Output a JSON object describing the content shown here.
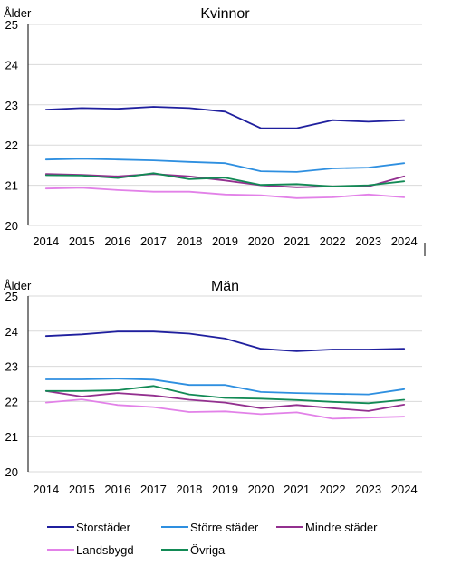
{
  "chart_data": [
    {
      "type": "line",
      "title": "Kvinnor",
      "ylabel": "Ålder",
      "xlabel": "",
      "ylim": [
        20,
        25
      ],
      "yticks": [
        20,
        21,
        22,
        23,
        24,
        25
      ],
      "grid": true,
      "categories": [
        "2014",
        "2015",
        "2016",
        "2017",
        "2018",
        "2019",
        "2020",
        "2021",
        "2022",
        "2023",
        "2024"
      ],
      "series": [
        {
          "name": "Storstäder",
          "color": "#1f1f9e",
          "values": [
            22.88,
            22.92,
            22.9,
            22.95,
            22.92,
            22.83,
            22.42,
            22.42,
            22.62,
            22.58,
            22.62
          ]
        },
        {
          "name": "Större städer",
          "color": "#2e8fe0",
          "values": [
            21.64,
            21.66,
            21.64,
            21.62,
            21.58,
            21.55,
            21.35,
            21.33,
            21.42,
            21.44,
            21.55
          ]
        },
        {
          "name": "Mindre städer",
          "color": "#93308f",
          "values": [
            21.28,
            21.26,
            21.22,
            21.28,
            21.22,
            21.12,
            21.0,
            20.95,
            20.97,
            20.97,
            21.22
          ]
        },
        {
          "name": "Landsbygd",
          "color": "#e281e8",
          "values": [
            20.92,
            20.94,
            20.88,
            20.84,
            20.84,
            20.77,
            20.75,
            20.68,
            20.7,
            20.77,
            20.7
          ]
        },
        {
          "name": "Övriga",
          "color": "#128a55",
          "values": [
            21.25,
            21.24,
            21.18,
            21.3,
            21.15,
            21.19,
            21.01,
            21.03,
            20.97,
            21.0,
            21.1
          ]
        }
      ]
    },
    {
      "type": "line",
      "title": "Män",
      "ylabel": "Ålder",
      "xlabel": "",
      "ylim": [
        20,
        25
      ],
      "yticks": [
        20,
        21,
        22,
        23,
        24,
        25
      ],
      "grid": true,
      "categories": [
        "2014",
        "2015",
        "2016",
        "2017",
        "2018",
        "2019",
        "2020",
        "2021",
        "2022",
        "2023",
        "2024"
      ],
      "series": [
        {
          "name": "Storstäder",
          "color": "#1f1f9e",
          "values": [
            23.86,
            23.91,
            23.99,
            23.99,
            23.93,
            23.79,
            23.5,
            23.43,
            23.48,
            23.48,
            23.5
          ]
        },
        {
          "name": "Större städer",
          "color": "#2e8fe0",
          "values": [
            22.63,
            22.63,
            22.65,
            22.62,
            22.47,
            22.47,
            22.27,
            22.24,
            22.22,
            22.2,
            22.35
          ]
        },
        {
          "name": "Mindre städer",
          "color": "#93308f",
          "values": [
            22.3,
            22.14,
            22.24,
            22.17,
            22.05,
            21.97,
            21.81,
            21.9,
            21.81,
            21.73,
            21.91
          ]
        },
        {
          "name": "Landsbygd",
          "color": "#e281e8",
          "values": [
            21.97,
            22.06,
            21.9,
            21.84,
            21.7,
            21.72,
            21.64,
            21.69,
            21.51,
            21.54,
            21.57
          ]
        },
        {
          "name": "Övriga",
          "color": "#128a55",
          "values": [
            22.3,
            22.3,
            22.32,
            22.44,
            22.2,
            22.1,
            22.08,
            22.04,
            21.99,
            21.95,
            22.05
          ]
        }
      ]
    }
  ],
  "legend": {
    "placement": "bottom",
    "items": [
      {
        "label": "Storstäder",
        "color": "#1f1f9e"
      },
      {
        "label": "Större städer",
        "color": "#2e8fe0"
      },
      {
        "label": "Mindre städer",
        "color": "#93308f"
      },
      {
        "label": "Landsbygd",
        "color": "#e281e8"
      },
      {
        "label": "Övriga",
        "color": "#128a55"
      }
    ]
  }
}
